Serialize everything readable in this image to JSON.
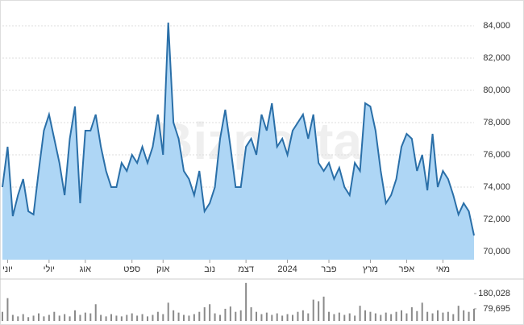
{
  "chart_data": [
    {
      "type": "area",
      "watermark": "Bizportal",
      "color": "#2a6fa8",
      "fill": "#aed6f5",
      "grid": true,
      "values": [
        74000,
        76500,
        72200,
        73500,
        74500,
        72500,
        72300,
        75000,
        77500,
        78500,
        77000,
        75500,
        73500,
        77000,
        79000,
        73000,
        77500,
        77500,
        78500,
        76500,
        75000,
        74000,
        74000,
        75500,
        75000,
        76000,
        75500,
        76500,
        75500,
        76500,
        78500,
        76000,
        84200,
        78000,
        77000,
        75000,
        74500,
        73500,
        75000,
        72500,
        73000,
        74000,
        77000,
        78800,
        76500,
        74000,
        74000,
        76500,
        77000,
        76000,
        78500,
        77500,
        79200,
        76500,
        77000,
        76000,
        77500,
        78000,
        78500,
        77000,
        78500,
        75500,
        75000,
        75500,
        74500,
        75200,
        74000,
        73500,
        75500,
        75000,
        79200,
        79000,
        77500,
        75000,
        73000,
        73500,
        74500,
        76500,
        77300,
        77000,
        75000,
        76000,
        73800,
        77300,
        74000,
        75000,
        74500,
        73500,
        72300,
        73000,
        72500,
        71000
      ],
      "xlim": [
        0,
        91
      ],
      "ylim": [
        69500,
        85350
      ],
      "yticks": [
        {
          "value": 70000,
          "label": "70,000"
        },
        {
          "value": 72000,
          "label": "72,000"
        },
        {
          "value": 74000,
          "label": "74,000"
        },
        {
          "value": 76000,
          "label": "76,000"
        },
        {
          "value": 78000,
          "label": "78,000"
        },
        {
          "value": 80000,
          "label": "80,000"
        },
        {
          "value": 82000,
          "label": "82,000"
        },
        {
          "value": 84000,
          "label": "84,000"
        }
      ],
      "xticks": [
        {
          "value": 1,
          "label": "יוני"
        },
        {
          "value": 9,
          "label": "יולי"
        },
        {
          "value": 16,
          "label": "אוג"
        },
        {
          "value": 25,
          "label": "ספט"
        },
        {
          "value": 31,
          "label": "אוק"
        },
        {
          "value": 40,
          "label": "נוב"
        },
        {
          "value": 47,
          "label": "דצמ"
        },
        {
          "value": 55,
          "label": "2024"
        },
        {
          "value": 63,
          "label": "פבר"
        },
        {
          "value": 71,
          "label": "מרץ"
        },
        {
          "value": 78,
          "label": "אפר"
        },
        {
          "value": 85,
          "label": "מאי"
        }
      ]
    },
    {
      "type": "bar",
      "color": "#8a8a8a",
      "values": [
        60000,
        150000,
        40000,
        30000,
        45000,
        25000,
        35000,
        50000,
        30000,
        40000,
        60000,
        35000,
        45000,
        30000,
        70000,
        40000,
        55000,
        50000,
        110000,
        40000,
        30000,
        45000,
        35000,
        30000,
        40000,
        50000,
        35000,
        45000,
        30000,
        40000,
        60000,
        45000,
        120000,
        70000,
        55000,
        40000,
        35000,
        45000,
        60000,
        90000,
        110000,
        50000,
        40000,
        80000,
        95000,
        60000,
        70000,
        250000,
        90000,
        60000,
        45000,
        55000,
        40000,
        50000,
        35000,
        45000,
        40000,
        60000,
        70000,
        50000,
        140000,
        130000,
        160000,
        60000,
        45000,
        55000,
        40000,
        50000,
        35000,
        100000,
        70000,
        60000,
        50000,
        40000,
        55000,
        45000,
        60000,
        70000,
        50000,
        90000,
        65000,
        120000,
        60000,
        50000,
        70000,
        55000,
        60000,
        45000,
        100000,
        70000,
        60000,
        80000
      ],
      "xlim": [
        0,
        91
      ],
      "ylim": [
        0,
        265000
      ],
      "yticks": [
        {
          "value": 79695,
          "label": "79,695"
        },
        {
          "value": 180028,
          "label": "180,028"
        }
      ]
    }
  ]
}
